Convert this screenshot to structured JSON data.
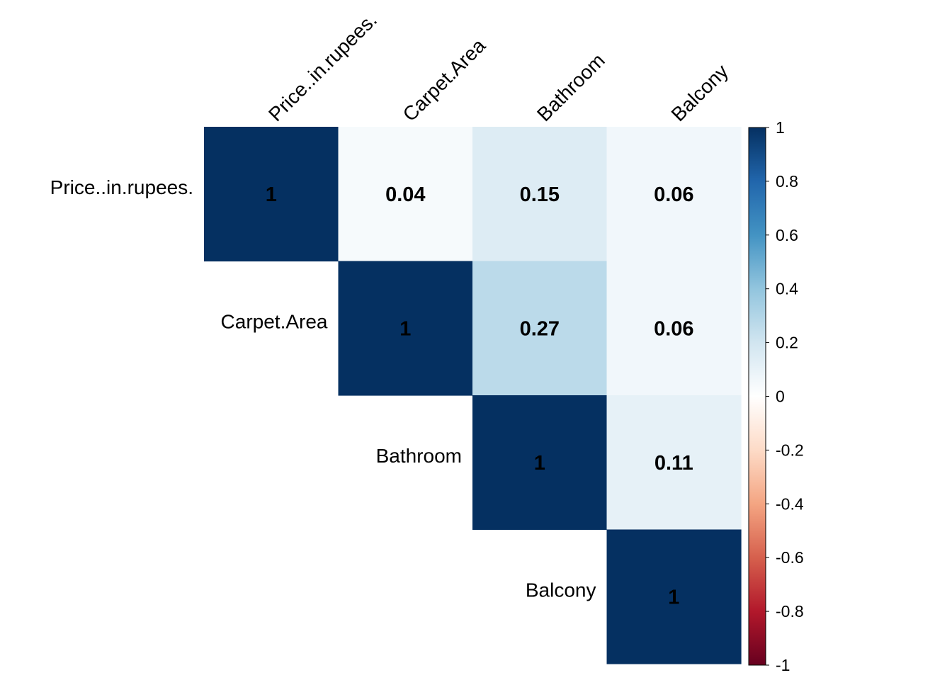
{
  "chart_data": {
    "type": "heatmap",
    "subtype": "correlation-matrix-upper",
    "variables": [
      "Price..in.rupees.",
      "Carpet.Area",
      "Bathroom",
      "Balcony"
    ],
    "cells": [
      {
        "row": "Price..in.rupees.",
        "col": "Price..in.rupees.",
        "value": 1,
        "label": "1"
      },
      {
        "row": "Price..in.rupees.",
        "col": "Carpet.Area",
        "value": 0.04,
        "label": "0.04"
      },
      {
        "row": "Price..in.rupees.",
        "col": "Bathroom",
        "value": 0.15,
        "label": "0.15"
      },
      {
        "row": "Price..in.rupees.",
        "col": "Balcony",
        "value": 0.06,
        "label": "0.06"
      },
      {
        "row": "Carpet.Area",
        "col": "Carpet.Area",
        "value": 1,
        "label": "1"
      },
      {
        "row": "Carpet.Area",
        "col": "Bathroom",
        "value": 0.27,
        "label": "0.27"
      },
      {
        "row": "Carpet.Area",
        "col": "Balcony",
        "value": 0.06,
        "label": "0.06"
      },
      {
        "row": "Bathroom",
        "col": "Bathroom",
        "value": 1,
        "label": "1"
      },
      {
        "row": "Bathroom",
        "col": "Balcony",
        "value": 0.11,
        "label": "0.11"
      },
      {
        "row": "Balcony",
        "col": "Balcony",
        "value": 1,
        "label": "1"
      }
    ],
    "color_scale": {
      "range": [
        -1,
        1
      ],
      "colors": [
        "#67001F",
        "#B2182B",
        "#D6604D",
        "#F4A582",
        "#FDDBC7",
        "#FFFFFF",
        "#D1E5F0",
        "#92C5DE",
        "#4393C3",
        "#2166AC",
        "#053061"
      ],
      "ticks": [
        1,
        0.8,
        0.6,
        0.4,
        0.2,
        0,
        -0.2,
        -0.4,
        -0.6,
        -0.8,
        -1
      ],
      "tick_labels": [
        "1",
        "0.8",
        "0.6",
        "0.4",
        "0.2",
        "0",
        "-0.2",
        "-0.4",
        "-0.6",
        "-0.8",
        "-1"
      ],
      "legend_position": "right"
    },
    "title": "",
    "grid": false
  }
}
